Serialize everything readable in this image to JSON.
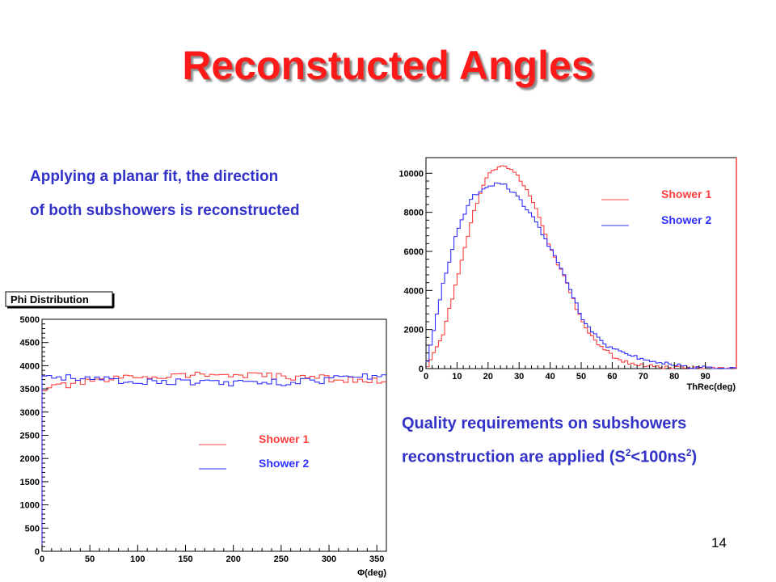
{
  "slide": {
    "title": "Reconstucted Angles",
    "text1_line1": "Applying a planar fit, the direction",
    "text1_line2": "of both subshowers is reconstructed",
    "text2_line1": "Quality requirements on subshowers",
    "text2_line2_prefix": "reconstruction are applied (S",
    "text2_line2_sup1": "2",
    "text2_line2_mid": "<100ns",
    "text2_line2_sup2": "2",
    "text2_line2_suffix": ")",
    "page_number": "14"
  },
  "colors": {
    "shower1": "#ff4040",
    "shower2": "#3030ff",
    "title": "#ff1a1a",
    "text": "#3232c8"
  },
  "chart_data": [
    {
      "type": "line",
      "title": "",
      "xlabel": "ThRec(deg)",
      "ylabel": "",
      "xlim": [
        0,
        100
      ],
      "ylim": [
        0,
        10800
      ],
      "xticks": [
        0,
        10,
        20,
        30,
        40,
        50,
        60,
        70,
        80,
        90
      ],
      "yticks": [
        0,
        2000,
        4000,
        6000,
        8000,
        10000
      ],
      "x": [
        0,
        5,
        10,
        15,
        20,
        25,
        30,
        35,
        40,
        45,
        50,
        55,
        60,
        65,
        70,
        75,
        80,
        85,
        90,
        95,
        100
      ],
      "series": [
        {
          "name": "Shower 1",
          "color": "#ff4040",
          "values": [
            0,
            1500,
            4500,
            7800,
            10000,
            10500,
            9800,
            8400,
            6200,
            4500,
            2500,
            1300,
            650,
            300,
            150,
            80,
            40,
            20,
            10,
            5,
            2
          ]
        },
        {
          "name": "Shower 2",
          "color": "#3030ff",
          "values": [
            0,
            4000,
            7000,
            8800,
            9400,
            9500,
            8700,
            7600,
            6200,
            4600,
            2700,
            1600,
            1000,
            700,
            500,
            300,
            200,
            100,
            40,
            10,
            5
          ]
        }
      ],
      "legend": "top-right"
    },
    {
      "type": "line",
      "title": "Phi Distribution",
      "xlabel": "Φ(deg)",
      "ylabel": "",
      "xlim": [
        0,
        360
      ],
      "ylim": [
        0,
        5000
      ],
      "xticks": [
        0,
        50,
        100,
        150,
        200,
        250,
        300,
        350
      ],
      "yticks": [
        0,
        500,
        1000,
        1500,
        2000,
        2500,
        3000,
        3500,
        4000,
        4500,
        5000
      ],
      "x": [
        0,
        20,
        40,
        60,
        80,
        100,
        120,
        140,
        160,
        180,
        200,
        220,
        240,
        260,
        280,
        300,
        320,
        340,
        360
      ],
      "series": [
        {
          "name": "Shower 1",
          "color": "#ff4040",
          "values": [
            3500,
            3560,
            3620,
            3670,
            3720,
            3760,
            3780,
            3790,
            3810,
            3800,
            3790,
            3780,
            3770,
            3760,
            3750,
            3720,
            3700,
            3680,
            3650
          ]
        },
        {
          "name": "Shower 2",
          "color": "#3030ff",
          "values": [
            3800,
            3760,
            3720,
            3690,
            3680,
            3670,
            3660,
            3650,
            3640,
            3640,
            3630,
            3620,
            3630,
            3650,
            3670,
            3700,
            3730,
            3770,
            3810
          ]
        }
      ],
      "legend": "center-right"
    }
  ]
}
